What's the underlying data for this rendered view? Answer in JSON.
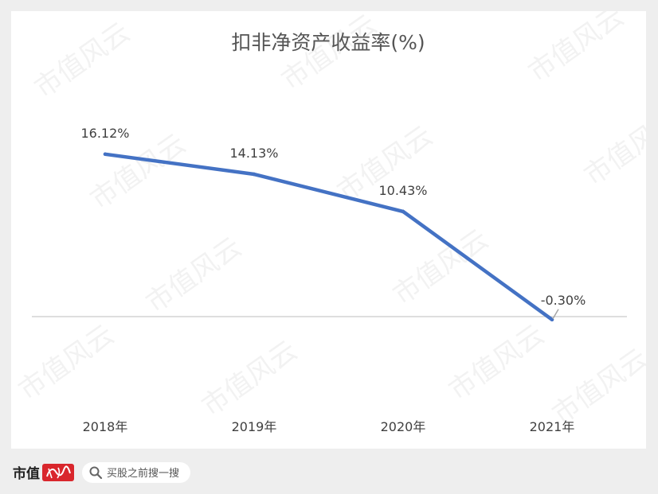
{
  "chart_data": {
    "type": "line",
    "title": "扣非净资产收益率(%)",
    "categories": [
      "2018年",
      "2019年",
      "2020年",
      "2021年"
    ],
    "series": [
      {
        "values": [
          16.12,
          14.13,
          10.43,
          -0.3
        ],
        "labels": [
          "16.12%",
          "14.13%",
          "10.43%",
          "-0.30%"
        ],
        "color": "#4472c4"
      }
    ],
    "ylim": [
      -12,
      24
    ],
    "grid": false,
    "legend": "none"
  },
  "watermark": {
    "text": "市值风云"
  },
  "footer": {
    "brand": "市值",
    "search_icon": "magnifier-icon",
    "search_text": "买股之前搜一搜"
  }
}
